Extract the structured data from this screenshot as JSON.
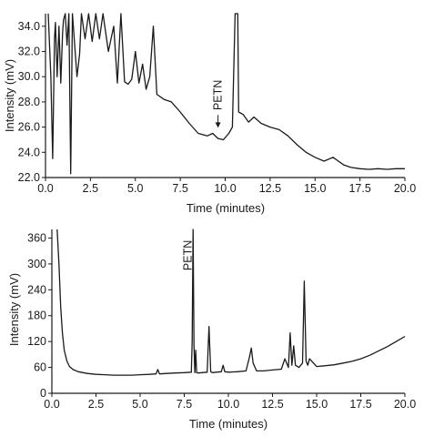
{
  "chart_data": [
    {
      "type": "line",
      "xlabel": "Time (minutes)",
      "ylabel": "Intensity (mV)",
      "xlim": [
        0,
        20
      ],
      "ylim": [
        22,
        35
      ],
      "x_ticks": [
        0,
        2.5,
        5,
        7.5,
        10,
        12.5,
        15,
        17.5,
        20
      ],
      "x_tick_labels": [
        "0.0",
        "2.5",
        "5.0",
        "7.5",
        "10.0",
        "12.5",
        "15.0",
        "17.5",
        "20.0"
      ],
      "y_ticks": [
        22,
        24,
        26,
        28,
        30,
        32,
        34
      ],
      "y_tick_labels": [
        "22.0",
        "24.0",
        "26.0",
        "28.0",
        "30.0",
        "32.0",
        "34.0"
      ],
      "annotations": [
        {
          "text": "PETN",
          "x": 9.6,
          "y": 25.8
        }
      ],
      "series": [
        {
          "x": [
            0.15,
            0.3,
            0.4,
            0.5,
            0.55,
            0.65,
            0.75,
            0.85,
            0.95,
            1.0,
            1.1,
            1.2,
            1.3,
            1.4,
            1.5,
            1.6,
            1.75,
            1.9,
            2.0,
            2.2,
            2.4,
            2.6,
            2.8,
            3.0,
            3.2,
            3.5,
            3.8,
            4.0,
            4.2,
            4.4,
            4.6,
            4.8,
            5.0,
            5.2,
            5.4,
            5.6,
            5.8,
            6.0,
            6.2,
            6.6,
            7.0,
            7.5,
            8.0,
            8.5,
            9.0,
            9.3,
            9.6,
            9.9,
            10.2,
            10.4,
            10.55,
            10.6,
            10.65,
            10.7,
            10.75,
            11.0,
            11.3,
            11.6,
            12.0,
            12.5,
            13.0,
            13.5,
            14.0,
            14.5,
            15.0,
            15.5,
            16.0,
            16.3,
            16.6,
            17.0,
            17.5,
            18.0,
            18.5,
            19.0,
            19.5,
            20.0
          ],
          "values": [
            35,
            30,
            23.5,
            33,
            34.3,
            30,
            34,
            29.5,
            33.5,
            34.5,
            35,
            32.5,
            35,
            22.3,
            35,
            33,
            30,
            31.8,
            35,
            33,
            35,
            32.8,
            35,
            33,
            35,
            32,
            34,
            29.5,
            35,
            29.6,
            29.4,
            29.8,
            32,
            29.5,
            31,
            29,
            30,
            34,
            28.6,
            28.2,
            28,
            27.2,
            26.3,
            25.5,
            25.3,
            25.5,
            25.1,
            25.0,
            25.5,
            26.0,
            35,
            35,
            35,
            35,
            27.2,
            27.0,
            26.4,
            26.8,
            26.3,
            26.0,
            25.8,
            25.3,
            24.6,
            24.0,
            23.6,
            23.3,
            23.6,
            23.3,
            23.0,
            22.8,
            22.7,
            22.65,
            22.7,
            22.65,
            22.7,
            22.7
          ]
        }
      ]
    },
    {
      "type": "line",
      "xlabel": "Time (minutes)",
      "ylabel": "Intensity (mV)",
      "xlim": [
        0,
        20
      ],
      "ylim": [
        0,
        380
      ],
      "x_ticks": [
        0,
        2.5,
        5,
        7.5,
        10,
        12.5,
        15,
        17.5,
        20
      ],
      "x_tick_labels": [
        "0.0",
        "2.5",
        "5.0",
        "7.5",
        "10.0",
        "12.5",
        "15.0",
        "17.5",
        "20.0"
      ],
      "y_ticks": [
        0,
        60,
        120,
        180,
        240,
        300,
        360
      ],
      "y_tick_labels": [
        "0",
        "60",
        "120",
        "180",
        "240",
        "300",
        "360"
      ],
      "annotations": [
        {
          "text": "PETN",
          "x": 7.7,
          "y": 320
        }
      ],
      "series": [
        {
          "x": [
            0.3,
            0.4,
            0.5,
            0.6,
            0.7,
            0.85,
            1.0,
            1.2,
            1.5,
            2.0,
            2.5,
            3.0,
            3.5,
            4.0,
            4.5,
            5.0,
            5.5,
            5.9,
            6.0,
            6.1,
            6.5,
            7.0,
            7.5,
            7.9,
            7.95,
            8.0,
            8.05,
            8.1,
            8.15,
            8.2,
            8.3,
            8.5,
            8.8,
            8.9,
            9.0,
            9.1,
            9.3,
            9.6,
            9.7,
            9.8,
            10.0,
            10.5,
            11.0,
            11.2,
            11.3,
            11.4,
            11.6,
            12.0,
            12.5,
            13.0,
            13.2,
            13.4,
            13.5,
            13.6,
            13.7,
            13.8,
            14.0,
            14.2,
            14.3,
            14.4,
            14.5,
            14.6,
            15.0,
            15.5,
            16.0,
            16.5,
            17.0,
            17.5,
            18.0,
            18.5,
            19.0,
            19.5,
            20.0
          ],
          "values": [
            380,
            300,
            200,
            140,
            100,
            75,
            62,
            55,
            50,
            46,
            44,
            43,
            42,
            42,
            42,
            43,
            44,
            45,
            55,
            45,
            46,
            47,
            48,
            49,
            120,
            385,
            110,
            48,
            100,
            48,
            47,
            48,
            49,
            155,
            50,
            48,
            49,
            50,
            65,
            50,
            49,
            50,
            52,
            85,
            105,
            70,
            52,
            52,
            54,
            56,
            80,
            60,
            140,
            65,
            110,
            65,
            60,
            70,
            260,
            75,
            65,
            80,
            62,
            64,
            66,
            70,
            74,
            80,
            88,
            98,
            108,
            120,
            132
          ]
        }
      ]
    }
  ]
}
